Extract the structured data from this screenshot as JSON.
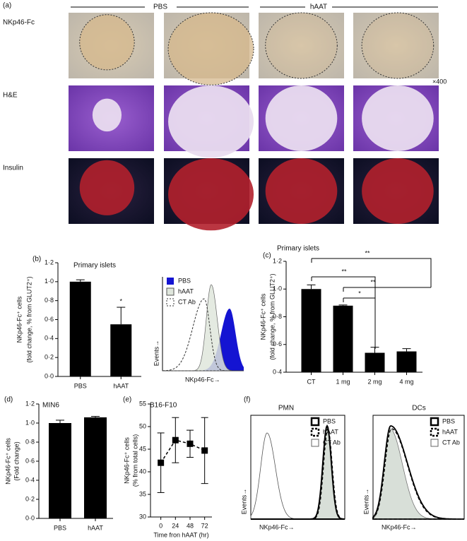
{
  "figure": {
    "panel_a": {
      "label": "(a)",
      "groups": [
        "PBS",
        "hAAT"
      ],
      "rows": [
        "NKp46-Fc",
        "H&E",
        "Insulin"
      ],
      "magnification": "×400"
    },
    "panel_b_inset": {
      "legend": [
        "PBS",
        "hAAT",
        "CT Ab"
      ],
      "xlabel": "NKp46-Fc→",
      "ylabel": "Events→"
    },
    "panel_f": {
      "label": "(f)",
      "plots": [
        {
          "title": "PMN",
          "legend": [
            "PBS",
            "hAAT",
            "CT Ab"
          ],
          "xlabel": "NKp46-Fc→",
          "ylabel": "Events→"
        },
        {
          "title": "DCs",
          "legend": [
            "PBS",
            "hAAT",
            "CT Ab"
          ],
          "xlabel": "NKp46-Fc→",
          "ylabel": "Events→"
        }
      ]
    }
  },
  "chart_data": [
    {
      "type": "bar",
      "label": "(b)",
      "title": "Primary islets",
      "ylabel": [
        "NKp46-Fc⁺ cells",
        "(fold change, % from GLUT2⁺)"
      ],
      "categories": [
        "PBS",
        "hAAT"
      ],
      "values": [
        1.0,
        0.55
      ],
      "errors": [
        0.02,
        0.18
      ],
      "color": "#000000",
      "ylim": [
        0,
        1.2
      ],
      "yticks": [
        {
          "value": 0,
          "label": "0·0"
        },
        {
          "value": 0.2,
          "label": "0·2"
        },
        {
          "value": 0.4,
          "label": "0·4"
        },
        {
          "value": 0.6,
          "label": "0·6"
        },
        {
          "value": 0.8,
          "label": "0·8"
        },
        {
          "value": 1.0,
          "label": "1·0"
        },
        {
          "value": 1.2,
          "label": "1·2"
        }
      ],
      "annotations": [
        "*"
      ]
    },
    {
      "type": "bar",
      "label": "(c)",
      "title": "Primary islets",
      "ylabel": [
        "NKp46-Fc⁺ cells",
        "(fold change, % from GLUT2⁺)"
      ],
      "categories": [
        "CT",
        "1 mg",
        "2 mg",
        "4 mg"
      ],
      "values": [
        1.0,
        0.88,
        0.54,
        0.55
      ],
      "errors": [
        0.03,
        0.005,
        0.04,
        0.02
      ],
      "color": "#000000",
      "ylim": [
        0.4,
        1.2
      ],
      "yticks": [
        {
          "value": 0.4,
          "label": "0·4"
        },
        {
          "value": 0.6,
          "label": "0·6"
        },
        {
          "value": 0.8,
          "label": "0·8"
        },
        {
          "value": 1.0,
          "label": "1·0"
        },
        {
          "value": 1.2,
          "label": "1·2"
        }
      ],
      "annotations": [
        "**",
        "**",
        "**",
        "*"
      ]
    },
    {
      "type": "bar",
      "label": "(d)",
      "title": "MIN6",
      "ylabel": [
        "NKp46-Fc⁺ cells",
        "(Fold change)"
      ],
      "categories": [
        "PBS",
        "hAAT"
      ],
      "values": [
        1.0,
        1.06
      ],
      "errors": [
        0.03,
        0.01
      ],
      "color": "#000000",
      "ylim": [
        0,
        1.2
      ],
      "yticks": [
        {
          "value": 0,
          "label": "0·0"
        },
        {
          "value": 0.2,
          "label": "0·2"
        },
        {
          "value": 0.4,
          "label": "0·4"
        },
        {
          "value": 0.6,
          "label": "0·6"
        },
        {
          "value": 0.8,
          "label": "0·8"
        },
        {
          "value": 1.0,
          "label": "1·0"
        },
        {
          "value": 1.2,
          "label": "1·2"
        }
      ]
    },
    {
      "type": "line",
      "label": "(e)",
      "title": "B16-F10",
      "ylabel": [
        "NKp46-Fc⁺ cells",
        "(% from total cells)"
      ],
      "xlabel": "Time fron hAAT (hr)",
      "x": [
        0,
        24,
        48,
        72
      ],
      "values": [
        42,
        47,
        46.2,
        44.7
      ],
      "errors": [
        6.6,
        5,
        3,
        7.3
      ],
      "color": "#000000",
      "xlim": [
        -17,
        84
      ],
      "xticks": [
        0,
        24,
        48,
        72
      ],
      "ylim": [
        30,
        55
      ],
      "yticks": [
        30,
        35,
        40,
        45,
        50,
        55
      ]
    }
  ]
}
